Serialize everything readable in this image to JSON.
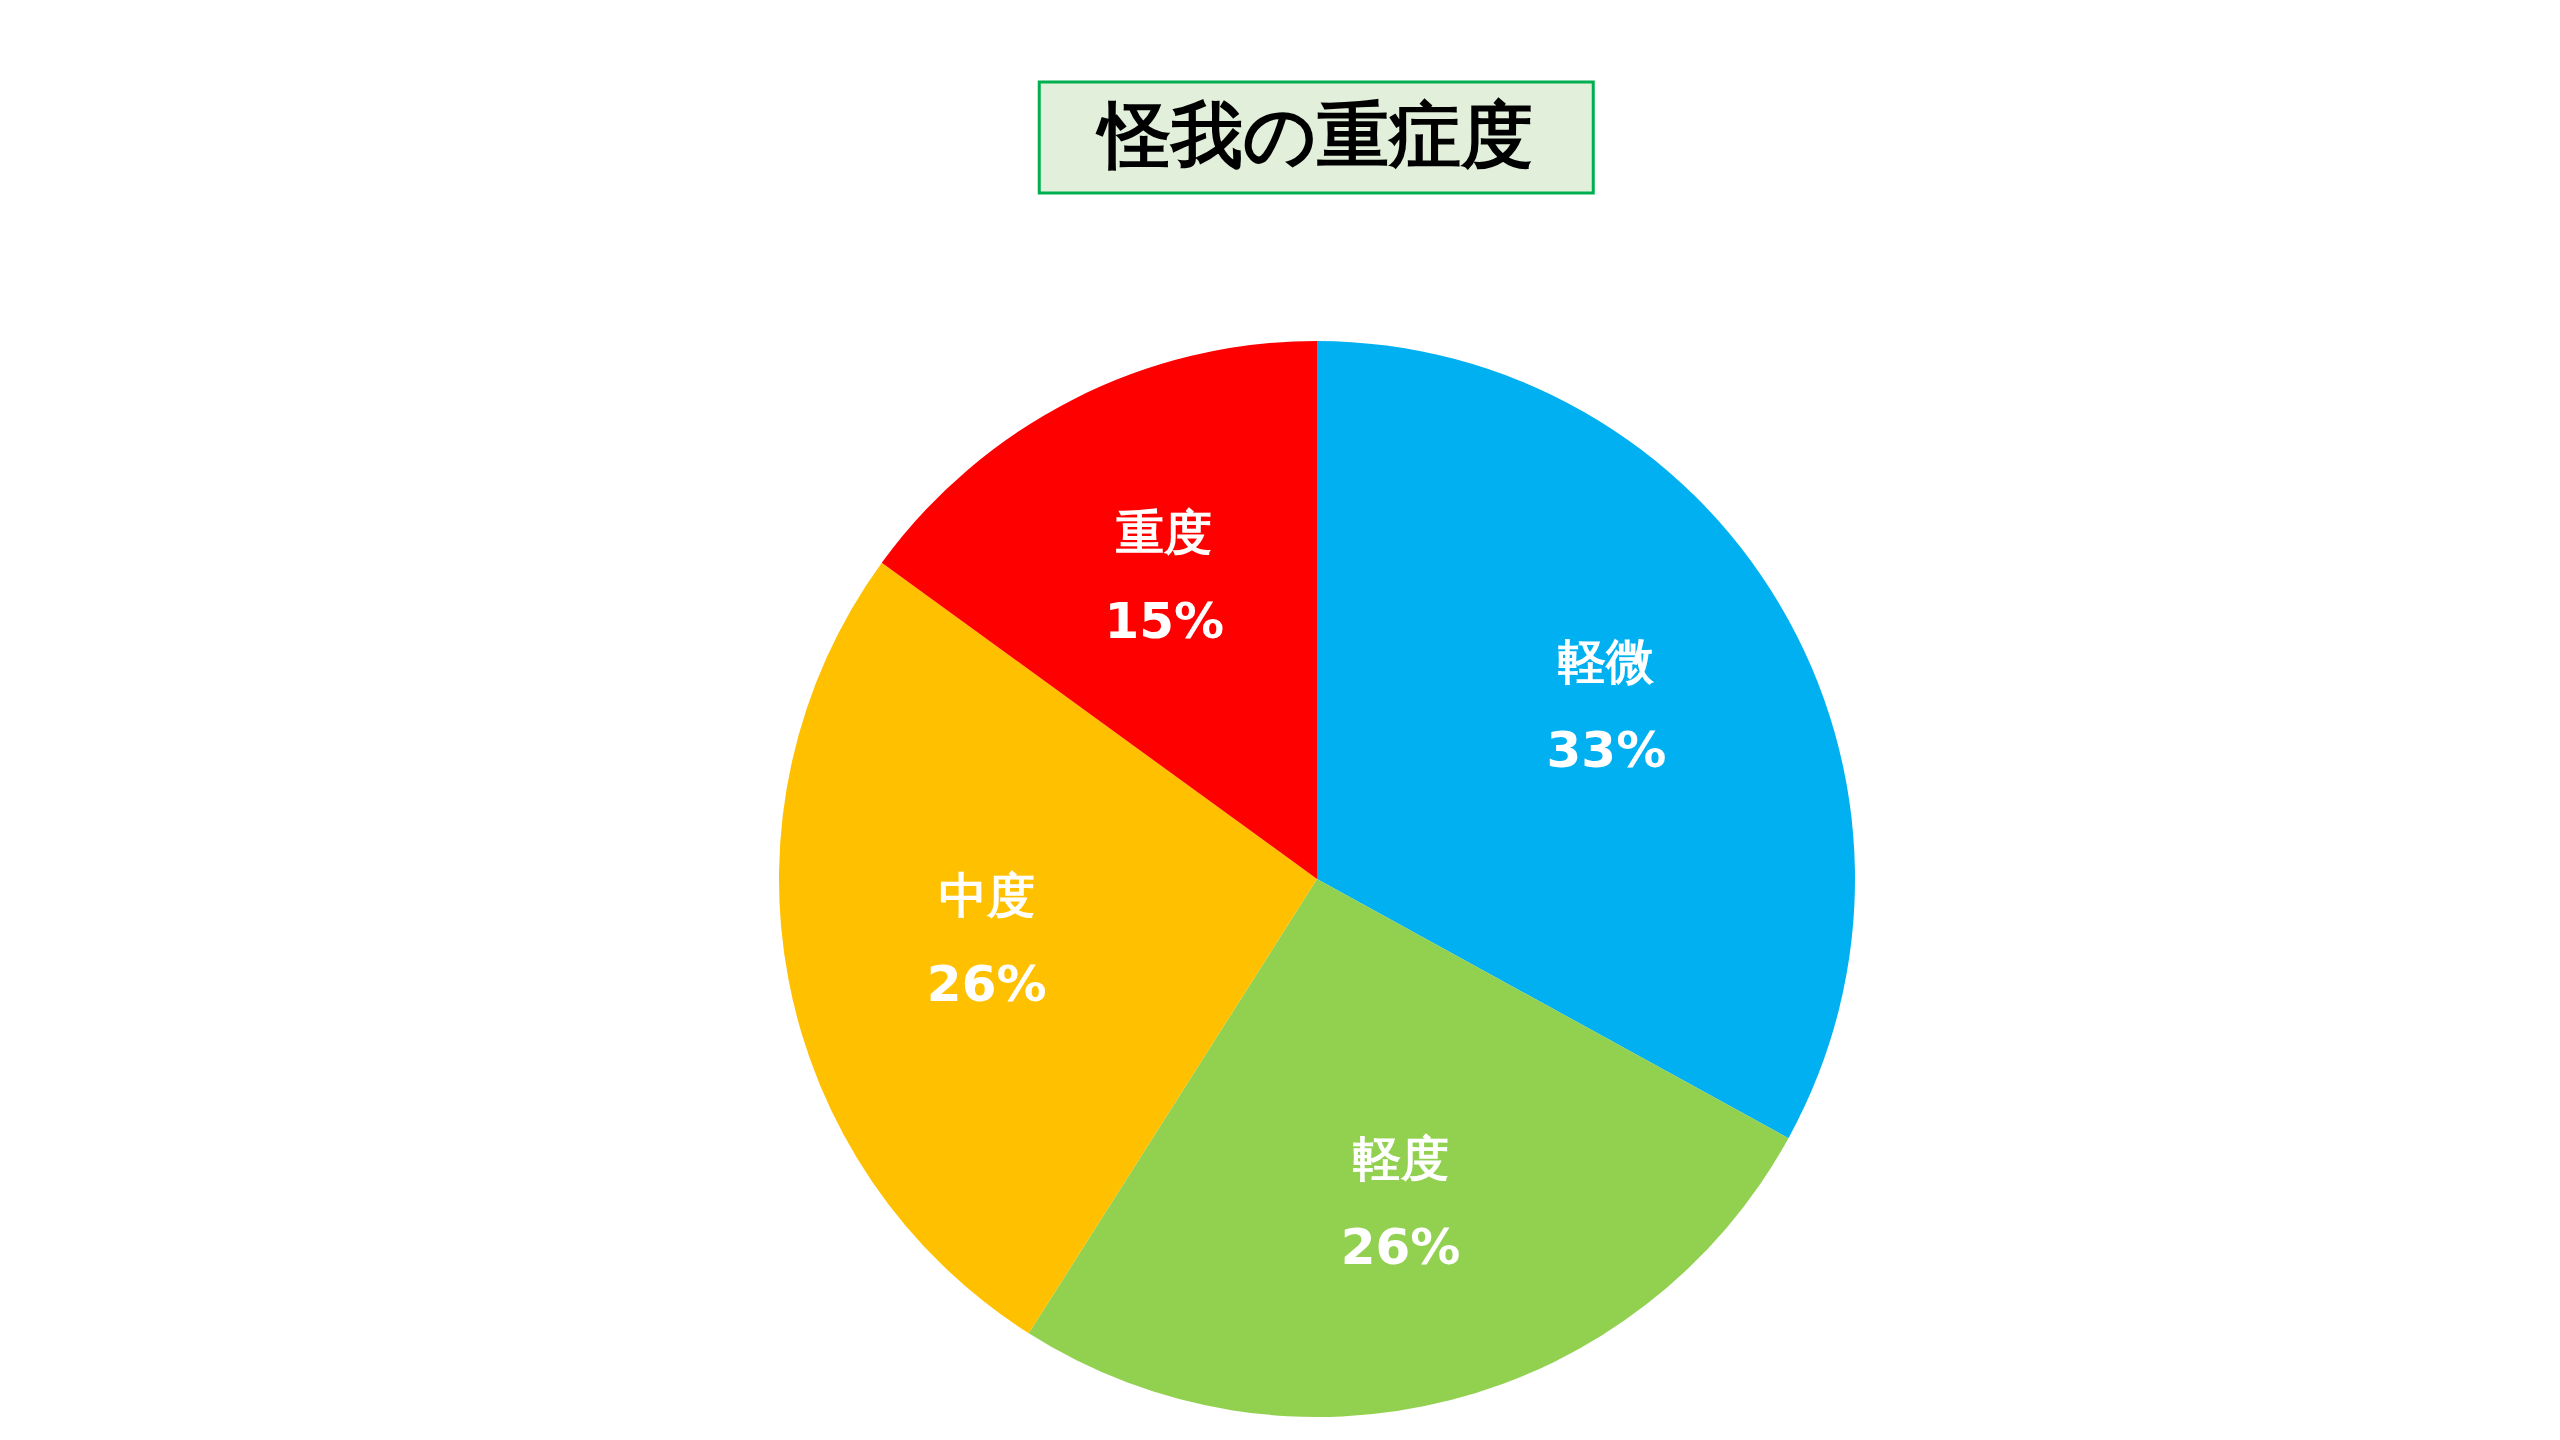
{
  "chart_data": {
    "type": "pie",
    "title": "怪我の重症度",
    "categories": [
      "軽微",
      "軽度",
      "中度",
      "重度"
    ],
    "values": [
      33,
      26,
      26,
      15
    ],
    "colors": [
      "#00b0f0",
      "#92d050",
      "#ffc000",
      "#ff0000"
    ],
    "value_labels": [
      "33%",
      "26%",
      "26%",
      "15%"
    ]
  }
}
